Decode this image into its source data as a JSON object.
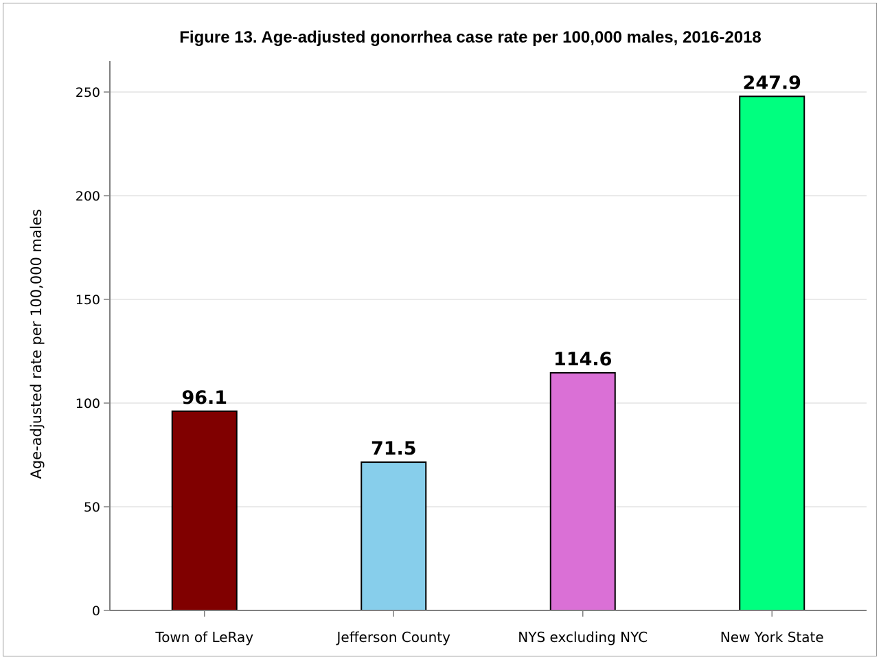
{
  "chart_data": {
    "type": "bar",
    "title": "Figure 13. Age-adjusted gonorrhea case rate per 100,000 males, 2016-2018",
    "xlabel": "",
    "ylabel": "Age-adjusted rate per 100,000 males",
    "categories": [
      "Town of LeRay",
      "Jefferson County",
      "NYS excluding NYC",
      "New York State"
    ],
    "values": [
      96.1,
      71.5,
      114.6,
      247.9
    ],
    "value_labels": [
      "96.1",
      "71.5",
      "114.6",
      "247.9"
    ],
    "colors": [
      "#800000",
      "#87ceeb",
      "#da70d6",
      "#00ff7f"
    ],
    "ylim": [
      0,
      250
    ],
    "yticks": [
      0,
      50,
      100,
      150,
      200,
      250
    ],
    "grid": true,
    "legend": "none"
  }
}
